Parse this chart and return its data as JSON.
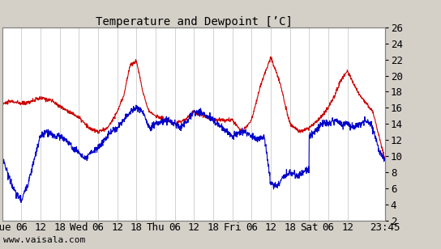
{
  "title": "Temperature and Dewpoint [’C]",
  "bg_color": "#d4d0c8",
  "plot_bg_color": "#ffffff",
  "grid_color": "#c0c0c0",
  "temp_color": "#cc0000",
  "dew_color": "#0000cc",
  "line_width": 0.8,
  "ylim": [
    2,
    26
  ],
  "yticks": [
    2,
    4,
    6,
    8,
    10,
    12,
    14,
    16,
    18,
    20,
    22,
    24,
    26
  ],
  "watermark": "www.vaisala.com",
  "x_tick_labels": [
    "Tue",
    "06",
    "12",
    "18",
    "Wed",
    "06",
    "12",
    "18",
    "Thu",
    "06",
    "12",
    "18",
    "Fri",
    "06",
    "12",
    "18",
    "Sat",
    "06",
    "12",
    "23:45"
  ],
  "x_tick_positions": [
    0,
    6,
    12,
    18,
    24,
    30,
    36,
    42,
    48,
    54,
    60,
    66,
    72,
    78,
    84,
    90,
    96,
    102,
    108,
    119.75
  ],
  "total_hours": 119.75,
  "font_family": "monospace",
  "font_size": 9,
  "title_font_size": 10,
  "temp_knots_t": [
    0,
    3,
    6,
    9,
    12,
    15,
    18,
    21,
    24,
    27,
    30,
    33,
    36,
    38,
    40,
    42,
    44,
    46,
    48,
    51,
    54,
    57,
    60,
    63,
    66,
    72,
    75,
    78,
    81,
    84,
    87,
    90,
    93,
    96,
    99,
    102,
    104,
    106,
    108,
    110,
    112,
    114,
    116,
    119.75
  ],
  "temp_knots_v": [
    16.5,
    16.8,
    16.5,
    16.8,
    17.2,
    17.0,
    16.2,
    15.5,
    14.8,
    13.5,
    13.0,
    13.5,
    15.5,
    17.5,
    21.3,
    21.8,
    18.0,
    15.5,
    15.0,
    14.5,
    14.0,
    14.5,
    15.5,
    15.0,
    14.5,
    14.5,
    13.0,
    14.5,
    19.0,
    22.3,
    19.0,
    14.0,
    13.0,
    13.5,
    14.5,
    16.0,
    17.5,
    19.5,
    20.5,
    19.0,
    17.5,
    16.5,
    15.5,
    9.5
  ],
  "dew_knots_t": [
    0,
    2,
    4,
    6,
    8,
    10,
    12,
    14,
    16,
    18,
    20,
    22,
    24,
    26,
    28,
    30,
    32,
    34,
    36,
    38,
    40,
    42,
    44,
    46,
    48,
    50,
    52,
    54,
    56,
    58,
    60,
    62,
    64,
    66,
    72,
    74,
    76,
    78,
    80,
    82,
    84,
    86,
    88,
    90,
    92,
    94,
    96,
    96,
    98,
    100,
    102,
    104,
    106,
    108,
    110,
    112,
    114,
    116,
    118,
    119.75
  ],
  "dew_knots_v": [
    10.0,
    7.5,
    5.5,
    4.5,
    6.5,
    9.5,
    12.5,
    13.0,
    12.5,
    12.5,
    12.0,
    11.0,
    10.5,
    9.5,
    10.5,
    11.0,
    12.0,
    13.0,
    13.5,
    14.5,
    15.5,
    16.0,
    15.5,
    13.5,
    14.0,
    14.2,
    14.5,
    14.0,
    13.5,
    14.5,
    15.5,
    15.5,
    15.0,
    14.5,
    12.5,
    12.8,
    13.0,
    12.5,
    12.0,
    12.5,
    6.5,
    6.2,
    7.5,
    8.0,
    7.5,
    8.0,
    8.5,
    12.5,
    13.0,
    14.0,
    14.0,
    14.5,
    14.0,
    14.0,
    13.5,
    14.0,
    14.5,
    13.5,
    10.5,
    9.5
  ]
}
